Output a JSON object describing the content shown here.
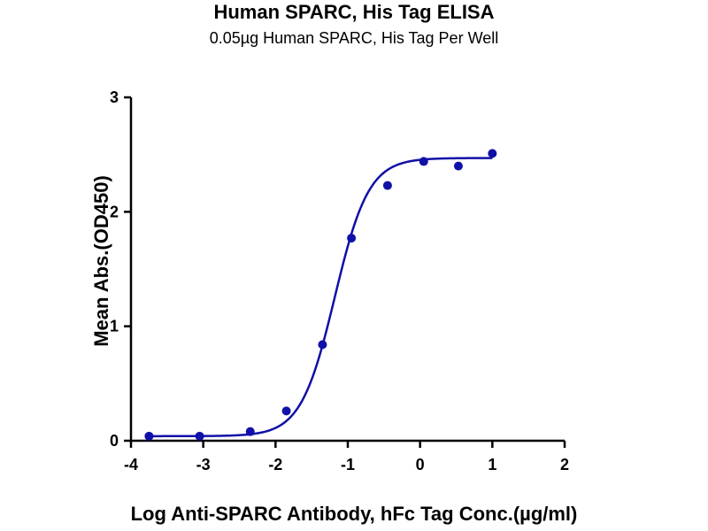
{
  "chart_data": {
    "type": "scatter",
    "title": "Human SPARC, His Tag ELISA",
    "subtitle": "0.05µg Human SPARC, His Tag Per Well",
    "xlabel": "Log Anti-SPARC Antibody, hFc Tag Conc.(µg/ml)",
    "ylabel": "Mean Abs.(OD450)",
    "xlim": [
      -4,
      2
    ],
    "ylim": [
      0,
      3
    ],
    "x_ticks": [
      -4,
      -3,
      -2,
      -1,
      0,
      1,
      2
    ],
    "y_ticks": [
      0,
      1,
      2,
      3
    ],
    "series": [
      {
        "x": [
          -3.75,
          -3.05,
          -2.35,
          -1.85,
          -1.35,
          -0.95,
          -0.45,
          0.05,
          0.53,
          1.0
        ],
        "y": [
          0.04,
          0.04,
          0.08,
          0.26,
          0.84,
          1.77,
          2.23,
          2.44,
          2.4,
          2.51
        ],
        "fit": {
          "bottom": 0.04,
          "top": 2.47,
          "logEC50": -1.18,
          "hill": 1.85
        }
      }
    ],
    "grid": false,
    "legend": "none",
    "color": "#1010a8"
  }
}
